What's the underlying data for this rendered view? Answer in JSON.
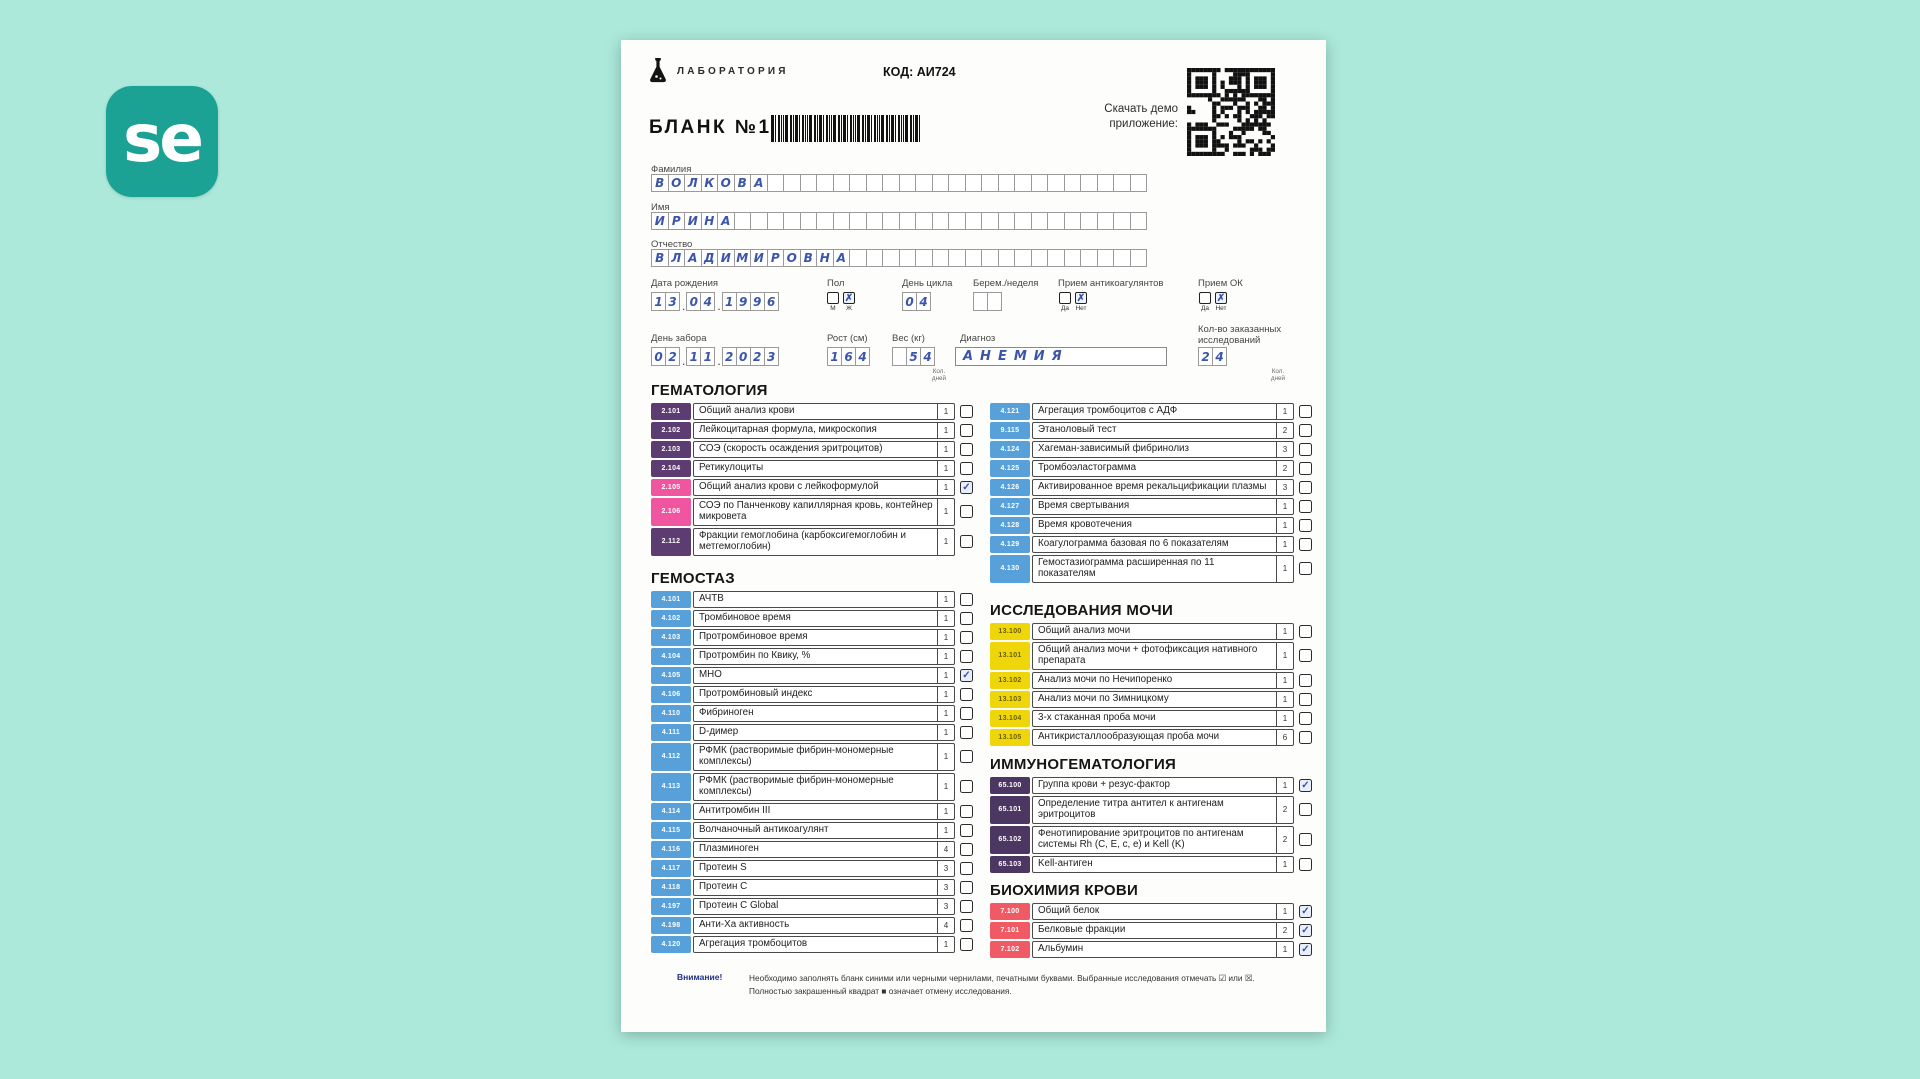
{
  "background_color": "#ace9db",
  "logo": {
    "text": "se",
    "bg": "#1ba294",
    "fg": "#ffffff"
  },
  "header": {
    "lab_name": "ЛАБОРАТОРИЯ",
    "code": "КОД: АИ724",
    "blank_title": "БЛАНК №1",
    "qr_label": "Скачать демо приложение:"
  },
  "patient": {
    "last_name": {
      "label": "Фамилия",
      "value": "ВОЛКОВА",
      "cells": 30
    },
    "first_name": {
      "label": "Имя",
      "value": "ИРИНА",
      "cells": 30
    },
    "middle_name": {
      "label": "Отчество",
      "value": "ВЛАДИМИРОВНА",
      "cells": 30
    },
    "birth_date": {
      "label": "Дата рождения",
      "groups": [
        "13",
        "04",
        "1996"
      ]
    },
    "sex": {
      "label": "Пол",
      "options": [
        "М",
        "Ж"
      ],
      "selected": "Ж"
    },
    "cycle_day": {
      "label": "День цикла",
      "value": "04",
      "cells": 2
    },
    "pregnancy_week": {
      "label": "Берем./неделя",
      "value": "",
      "cells": 2
    },
    "anticoagulants": {
      "label": "Прием антикоагулянтов",
      "options": [
        "Да",
        "Нет"
      ],
      "selected": "Нет"
    },
    "ok_intake": {
      "label": "Прием ОК",
      "options": [
        "Да",
        "Нет"
      ],
      "selected": "Нет"
    },
    "sampling_date": {
      "label": "День забора",
      "groups": [
        "02",
        "11",
        "2023"
      ]
    },
    "height": {
      "label": "Рост (см)",
      "value": "164",
      "cells": 3
    },
    "weight": {
      "label": "Вес (кг)",
      "value": " 54",
      "cells": 3
    },
    "diagnosis": {
      "label": "Диагноз",
      "value": "АНЕМИЯ"
    },
    "tests_count": {
      "label": "Кол-во заказанных исследований",
      "value": "24",
      "cells": 2
    }
  },
  "days_header": {
    "l1": "Кол.",
    "l2": "дней"
  },
  "palette": {
    "purple": "#5d3c72",
    "pink": "#f0559f",
    "blue": "#57a0da",
    "yellow": "#efd60a",
    "darkpurple": "#4c3763",
    "red": "#ef5a64"
  },
  "chip_text": {
    "yellow": "#6a6000",
    "default": "#ffffff"
  },
  "mark_color": "#3552a8",
  "sections": {
    "left": [
      {
        "title": "ГЕМАТОЛОГИЯ",
        "rows": [
          {
            "code": "2.101",
            "color": "purple",
            "name": "Общий анализ крови",
            "days": "1",
            "checked": false
          },
          {
            "code": "2.102",
            "color": "purple",
            "name": "Лейкоцитарная формула, микроскопия",
            "days": "1",
            "checked": false
          },
          {
            "code": "2.103",
            "color": "purple",
            "name": "СОЭ (скорость осаждения эритроцитов)",
            "days": "1",
            "checked": false
          },
          {
            "code": "2.104",
            "color": "purple",
            "name": "Ретикулоциты",
            "days": "1",
            "checked": false
          },
          {
            "code": "2.105",
            "color": "pink",
            "name": "Общий анализ крови с лейкоформулой",
            "days": "1",
            "checked": true
          },
          {
            "code": "2.106",
            "color": "pink",
            "name": "СОЭ по Панченкову капиллярная кровь, контейнер микровета",
            "days": "1",
            "checked": false
          },
          {
            "code": "2.112",
            "color": "purple",
            "name": "Фракции гемоглобина (карбоксигемоглобин и метгемоглобин)",
            "days": "1",
            "checked": false
          }
        ]
      },
      {
        "title": "ГЕМОСТАЗ",
        "rows": [
          {
            "code": "4.101",
            "color": "blue",
            "name": "АЧТВ",
            "days": "1",
            "checked": false
          },
          {
            "code": "4.102",
            "color": "blue",
            "name": "Тромбиновое время",
            "days": "1",
            "checked": false
          },
          {
            "code": "4.103",
            "color": "blue",
            "name": "Протромбиновое время",
            "days": "1",
            "checked": false
          },
          {
            "code": "4.104",
            "color": "blue",
            "name": "Протромбин по Квику, %",
            "days": "1",
            "checked": false
          },
          {
            "code": "4.105",
            "color": "blue",
            "name": "МНО",
            "days": "1",
            "checked": true
          },
          {
            "code": "4.106",
            "color": "blue",
            "name": "Протромбиновый индекс",
            "days": "1",
            "checked": false
          },
          {
            "code": "4.110",
            "color": "blue",
            "name": "Фибриноген",
            "days": "1",
            "checked": false
          },
          {
            "code": "4.111",
            "color": "blue",
            "name": "D-димер",
            "days": "1",
            "checked": false
          },
          {
            "code": "4.112",
            "color": "blue",
            "name": "РФМК (растворимые фибрин-мономерные комплексы)",
            "days": "1",
            "checked": false
          },
          {
            "code": "4.113",
            "color": "blue",
            "name": "РФМК (растворимые фибрин-мономерные комплексы)",
            "days": "1",
            "checked": false
          },
          {
            "code": "4.114",
            "color": "blue",
            "name": "Антитромбин III",
            "days": "1",
            "checked": false
          },
          {
            "code": "4.115",
            "color": "blue",
            "name": "Волчаночный антикоагулянт",
            "days": "1",
            "checked": false
          },
          {
            "code": "4.116",
            "color": "blue",
            "name": "Плазминоген",
            "days": "4",
            "checked": false
          },
          {
            "code": "4.117",
            "color": "blue",
            "name": "Протеин S",
            "days": "3",
            "checked": false
          },
          {
            "code": "4.118",
            "color": "blue",
            "name": "Протеин C",
            "days": "3",
            "checked": false
          },
          {
            "code": "4.197",
            "color": "blue",
            "name": "Протеин C Global",
            "days": "3",
            "checked": false
          },
          {
            "code": "4.198",
            "color": "blue",
            "name": "Анти-Ха активность",
            "days": "4",
            "checked": false
          },
          {
            "code": "4.120",
            "color": "blue",
            "name": "Агрегация тромбоцитов",
            "days": "1",
            "checked": false
          }
        ]
      }
    ],
    "right": [
      {
        "title": "",
        "rows": [
          {
            "code": "4.121",
            "color": "blue",
            "name": "Агрегация тромбоцитов с АДФ",
            "days": "1",
            "checked": false
          },
          {
            "code": "9.115",
            "color": "blue",
            "name": "Этаноловый тест",
            "days": "2",
            "checked": false
          },
          {
            "code": "4.124",
            "color": "blue",
            "name": "Хагеман-зависимый фибринолиз",
            "days": "3",
            "checked": false
          },
          {
            "code": "4.125",
            "color": "blue",
            "name": "Тромбоэластограмма",
            "days": "2",
            "checked": false
          },
          {
            "code": "4.126",
            "color": "blue",
            "name": "Активированное время рекальцификации плазмы",
            "days": "3",
            "checked": false
          },
          {
            "code": "4.127",
            "color": "blue",
            "name": "Время свертывания",
            "days": "1",
            "checked": false
          },
          {
            "code": "4.128",
            "color": "blue",
            "name": "Время кровотечения",
            "days": "1",
            "checked": false
          },
          {
            "code": "4.129",
            "color": "blue",
            "name": "Коагулограмма базовая по 6 показателям",
            "days": "1",
            "checked": false
          },
          {
            "code": "4.130",
            "color": "blue",
            "name": "Гемостазиограмма расширенная по 11 показателям",
            "days": "1",
            "checked": false
          }
        ]
      },
      {
        "title": "ИССЛЕДОВАНИЯ МОЧИ",
        "rows": [
          {
            "code": "13.100",
            "color": "yellow",
            "name": "Общий анализ мочи",
            "days": "1",
            "checked": false
          },
          {
            "code": "13.101",
            "color": "yellow",
            "name": "Общий анализ мочи + фотофиксация нативного препарата",
            "days": "1",
            "checked": false
          },
          {
            "code": "13.102",
            "color": "yellow",
            "name": "Анализ мочи по Нечипоренко",
            "days": "1",
            "checked": false
          },
          {
            "code": "13.103",
            "color": "yellow",
            "name": "Анализ мочи по Зимницкому",
            "days": "1",
            "checked": false
          },
          {
            "code": "13.104",
            "color": "yellow",
            "name": "3-х стаканная проба мочи",
            "days": "1",
            "checked": false
          },
          {
            "code": "13.105",
            "color": "yellow",
            "name": "Антикристаллообразующая проба мочи",
            "days": "6",
            "checked": false
          }
        ]
      },
      {
        "title": "ИММУНОГЕМАТОЛОГИЯ",
        "rows": [
          {
            "code": "65.100",
            "color": "darkpurple",
            "name": "Группа крови + резус-фактор",
            "days": "1",
            "checked": true
          },
          {
            "code": "65.101",
            "color": "darkpurple",
            "name": "Определение титра антител к антигенам эритроцитов",
            "days": "2",
            "checked": false
          },
          {
            "code": "65.102",
            "color": "darkpurple",
            "name": "Фенотипирование эритроцитов по антигенам системы Rh (C, E, c, e) и Kell (K)",
            "days": "2",
            "checked": false
          },
          {
            "code": "65.103",
            "color": "darkpurple",
            "name": "Kell-антиген",
            "days": "1",
            "checked": false
          }
        ]
      },
      {
        "title": "БИОХИМИЯ КРОВИ",
        "rows": [
          {
            "code": "7.100",
            "color": "red",
            "name": "Общий белок",
            "days": "1",
            "checked": true
          },
          {
            "code": "7.101",
            "color": "red",
            "name": "Белковые фракции",
            "days": "2",
            "checked": true
          },
          {
            "code": "7.102",
            "color": "red",
            "name": "Альбумин",
            "days": "1",
            "checked": true
          }
        ]
      }
    ]
  },
  "footer": {
    "warning_label": "Внимание!",
    "line1": "Необходимо заполнять бланк синими или черными чернилами, печатными буквами. Выбранные исследования отмечать ☑ или ☒.",
    "line2": "Полностью закрашенный квадрат ■ означает отмену исследования."
  }
}
